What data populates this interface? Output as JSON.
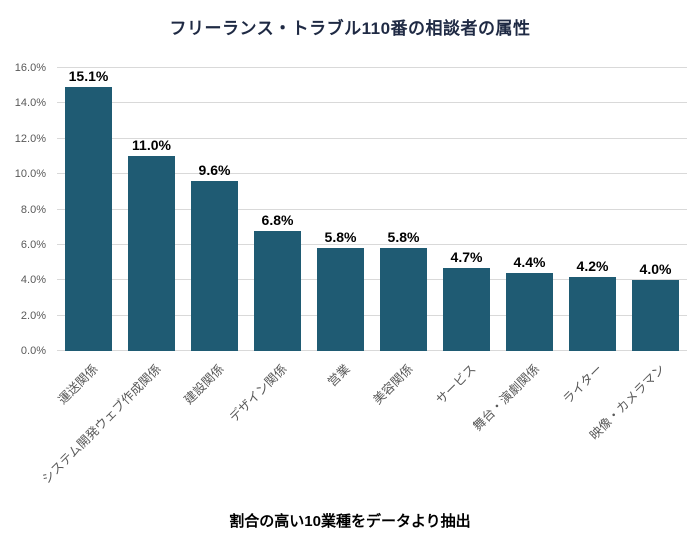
{
  "chart_data": {
    "type": "bar",
    "title": "フリーランス・トラブル110番の相談者の属性",
    "caption": "割合の高い10業種をデータより抽出",
    "categories": [
      "運送関係",
      "システム開発ウェブ作成関係",
      "建設関係",
      "デザイン関係",
      "営業",
      "美容関係",
      "サービス",
      "舞台・演劇関係",
      "ライター",
      "映像・カメラマン"
    ],
    "values": [
      15.1,
      11.0,
      9.6,
      6.8,
      5.8,
      5.8,
      4.7,
      4.4,
      4.2,
      4.0
    ],
    "data_labels": [
      "15.1%",
      "11.0%",
      "9.6%",
      "6.8%",
      "5.8%",
      "5.8%",
      "4.7%",
      "4.4%",
      "4.2%",
      "4.0%"
    ],
    "xlabel": "",
    "ylabel": "",
    "ylim": [
      0,
      16
    ],
    "ytick_step": 2,
    "ytick_labels": [
      "0.0%",
      "2.0%",
      "4.0%",
      "6.0%",
      "8.0%",
      "10.0%",
      "12.0%",
      "14.0%",
      "16.0%"
    ],
    "bar_color": "#1f5b73",
    "grid": true,
    "legend": "none"
  }
}
